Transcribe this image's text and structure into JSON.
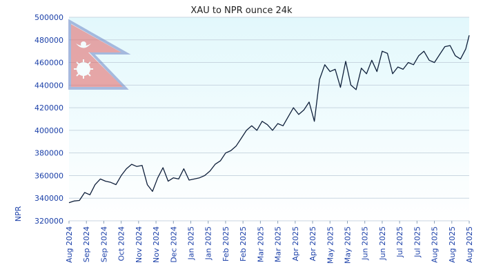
{
  "chart_data": {
    "type": "line",
    "title": "XAU to NPR ounce 24k",
    "xlabel": "",
    "ylabel": "NPR",
    "ylim": [
      320000,
      500000
    ],
    "yticks": [
      "320000",
      "340000",
      "360000",
      "380000",
      "400000",
      "420000",
      "440000",
      "460000",
      "480000",
      "500000"
    ],
    "xticks": [
      "Aug 2024",
      "Sep 2024",
      "Sep 2024",
      "Oct 2024",
      "Nov 2024",
      "Nov 2024",
      "Dec 2024",
      "Jan 2025",
      "Jan 2025",
      "Feb 2025",
      "Feb 2025",
      "Mar 2025",
      "Mar 2025",
      "Apr 2025",
      "Apr 2025",
      "May 2025",
      "May 2025",
      "Jun 2025",
      "Jun 2025",
      "Jul 2025",
      "Jul 2025",
      "Aug 2025",
      "Aug 2025",
      "Aug 2025"
    ],
    "grid": true,
    "legend": "none",
    "series": [
      {
        "x_index": [
          0,
          0.3,
          0.6,
          0.9,
          1.2,
          1.5,
          1.8,
          2.1,
          2.4,
          2.7,
          3.0,
          3.3,
          3.6,
          3.9,
          4.2,
          4.5,
          4.8,
          5.1,
          5.4,
          5.7,
          6.0,
          6.3,
          6.6,
          6.9,
          7.2,
          7.5,
          7.8,
          8.1,
          8.4,
          8.7,
          9.0,
          9.3,
          9.6,
          9.9,
          10.2,
          10.5,
          10.8,
          11.1,
          11.4,
          11.7,
          12.0,
          12.3,
          12.6,
          12.9,
          13.2,
          13.5,
          13.8,
          14.1,
          14.4,
          14.7,
          15.0,
          15.3,
          15.6,
          15.9,
          16.2,
          16.5,
          16.8,
          17.1,
          17.4,
          17.7,
          18.0,
          18.3,
          18.6,
          18.9,
          19.2,
          19.5,
          19.8,
          20.1,
          20.4,
          20.7,
          21.0,
          21.3,
          21.6,
          21.9,
          22.2,
          22.5,
          22.8,
          23.0
        ],
        "values": [
          336000,
          337500,
          338000,
          345000,
          343000,
          352000,
          357000,
          355000,
          354000,
          352000,
          360000,
          366000,
          370000,
          368000,
          369000,
          352000,
          346000,
          358000,
          367000,
          355000,
          358000,
          357000,
          366000,
          356000,
          357000,
          358000,
          360000,
          364000,
          370000,
          373000,
          380000,
          382000,
          386000,
          393000,
          400000,
          404000,
          400000,
          408000,
          405000,
          400000,
          406000,
          404000,
          412000,
          420000,
          414000,
          418000,
          425000,
          408000,
          445000,
          458000,
          452000,
          454000,
          438000,
          461000,
          440000,
          436000,
          455000,
          450000,
          462000,
          452000,
          470000,
          468000,
          450000,
          456000,
          454000,
          460000,
          458000,
          466000,
          470000,
          462000,
          460000,
          467000,
          474000,
          475000,
          466000,
          463000,
          472000,
          484000
        ]
      }
    ]
  }
}
